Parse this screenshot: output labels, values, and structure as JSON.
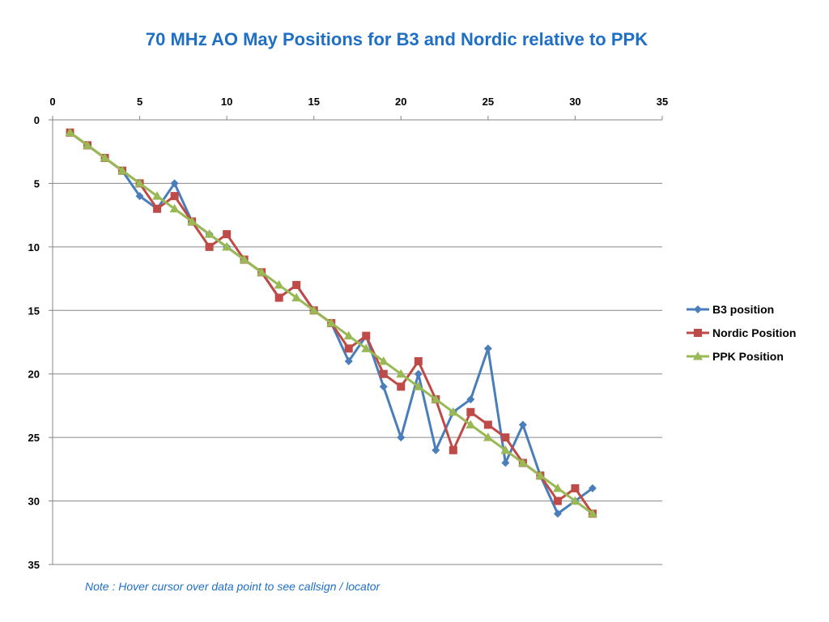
{
  "chart_data": {
    "type": "line",
    "title": "70 MHz AO May Positions for B3 and Nordic relative to PPK",
    "note": "Note : Hover cursor over data point to see callsign / locator",
    "x_axis": {
      "position": "top",
      "min": 0,
      "max": 35,
      "ticks": [
        "0",
        "5",
        "10",
        "15",
        "20",
        "25",
        "30",
        "35"
      ]
    },
    "y_axis": {
      "reversed": true,
      "min": 0,
      "max": 35,
      "ticks": [
        "0",
        "5",
        "10",
        "15",
        "20",
        "25",
        "30",
        "35"
      ]
    },
    "gridlines": "horizontal",
    "legend_position": "right",
    "x": [
      1,
      2,
      3,
      4,
      5,
      6,
      7,
      8,
      9,
      10,
      11,
      12,
      13,
      14,
      15,
      16,
      17,
      18,
      19,
      20,
      21,
      22,
      23,
      24,
      25,
      26,
      27,
      28,
      29,
      30,
      31
    ],
    "series": [
      {
        "name": "B3 position",
        "color": "#4A7EBB",
        "marker": "diamond",
        "values": [
          1,
          2,
          3,
          4,
          6,
          7,
          5,
          8,
          9,
          10,
          11,
          12,
          14,
          13,
          15,
          16,
          19,
          17,
          21,
          25,
          20,
          26,
          23,
          22,
          18,
          27,
          24,
          28,
          31,
          30,
          29
        ]
      },
      {
        "name": "Nordic Position",
        "color": "#BE4B48",
        "marker": "square",
        "values": [
          1,
          2,
          3,
          4,
          5,
          7,
          6,
          8,
          10,
          9,
          11,
          12,
          14,
          13,
          15,
          16,
          18,
          17,
          20,
          21,
          19,
          22,
          26,
          23,
          24,
          25,
          27,
          28,
          30,
          29,
          31
        ]
      },
      {
        "name": "PPK Position",
        "color": "#98B954",
        "marker": "triangle",
        "values": [
          1,
          2,
          3,
          4,
          5,
          6,
          7,
          8,
          9,
          10,
          11,
          12,
          13,
          14,
          15,
          16,
          17,
          18,
          19,
          20,
          21,
          22,
          23,
          24,
          25,
          26,
          27,
          28,
          29,
          30,
          31
        ]
      }
    ]
  }
}
